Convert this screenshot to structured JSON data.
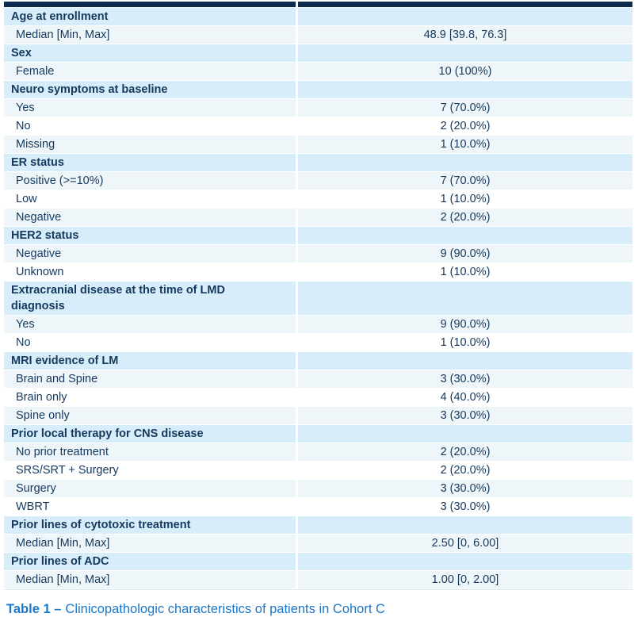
{
  "table": {
    "sections": [
      {
        "header": "Age at enrollment",
        "rows": [
          {
            "label": "Median [Min, Max]",
            "value": "48.9 [39.8, 76.3]"
          }
        ]
      },
      {
        "header": "Sex",
        "rows": [
          {
            "label": "Female",
            "value": "10 (100%)"
          }
        ]
      },
      {
        "header": "Neuro symptoms at baseline",
        "rows": [
          {
            "label": "Yes",
            "value": "7 (70.0%)"
          },
          {
            "label": "No",
            "value": "2 (20.0%)"
          },
          {
            "label": "Missing",
            "value": "1 (10.0%)"
          }
        ]
      },
      {
        "header": "ER status",
        "rows": [
          {
            "label": "Positive (>=10%)",
            "value": "7 (70.0%)"
          },
          {
            "label": "Low",
            "value": "1 (10.0%)"
          },
          {
            "label": "Negative",
            "value": "2 (20.0%)"
          }
        ]
      },
      {
        "header": "HER2 status",
        "rows": [
          {
            "label": "Negative",
            "value": "9 (90.0%)"
          },
          {
            "label": "Unknown",
            "value": "1 (10.0%)"
          }
        ]
      },
      {
        "header": "Extracranial disease at the time of LMD diagnosis",
        "rows": [
          {
            "label": "Yes",
            "value": "9 (90.0%)"
          },
          {
            "label": "No",
            "value": "1 (10.0%)"
          }
        ]
      },
      {
        "header": "MRI evidence of LM",
        "rows": [
          {
            "label": "Brain and Spine",
            "value": "3 (30.0%)"
          },
          {
            "label": "Brain only",
            "value": "4 (40.0%)"
          },
          {
            "label": "Spine only",
            "value": "3 (30.0%)"
          }
        ]
      },
      {
        "header": "Prior local therapy for CNS disease",
        "rows": [
          {
            "label": "No prior treatment",
            "value": "2 (20.0%)"
          },
          {
            "label": "SRS/SRT + Surgery",
            "value": "2 (20.0%)"
          },
          {
            "label": "Surgery",
            "value": "3 (30.0%)"
          },
          {
            "label": "WBRT",
            "value": "3 (30.0%)"
          }
        ]
      },
      {
        "header": "Prior lines of cytotoxic treatment",
        "rows": [
          {
            "label": "Median [Min, Max]",
            "value": "2.50 [0, 6.00]"
          }
        ]
      },
      {
        "header": "Prior lines of ADC",
        "rows": [
          {
            "label": "Median [Min, Max]",
            "value": "1.00 [0, 2.00]"
          }
        ]
      }
    ]
  },
  "caption": {
    "prefix": "Table 1 –",
    "text": "Clinicopathologic characteristics of patients in Cohort C"
  },
  "colors": {
    "top_bar": "#0e2c4f",
    "section_header_bg": "#d7edf9",
    "tinted_row_bg": "#eff6f9",
    "plain_row_bg": "#ffffff",
    "text": "#15395f",
    "caption_blue": "#1b78c8"
  }
}
